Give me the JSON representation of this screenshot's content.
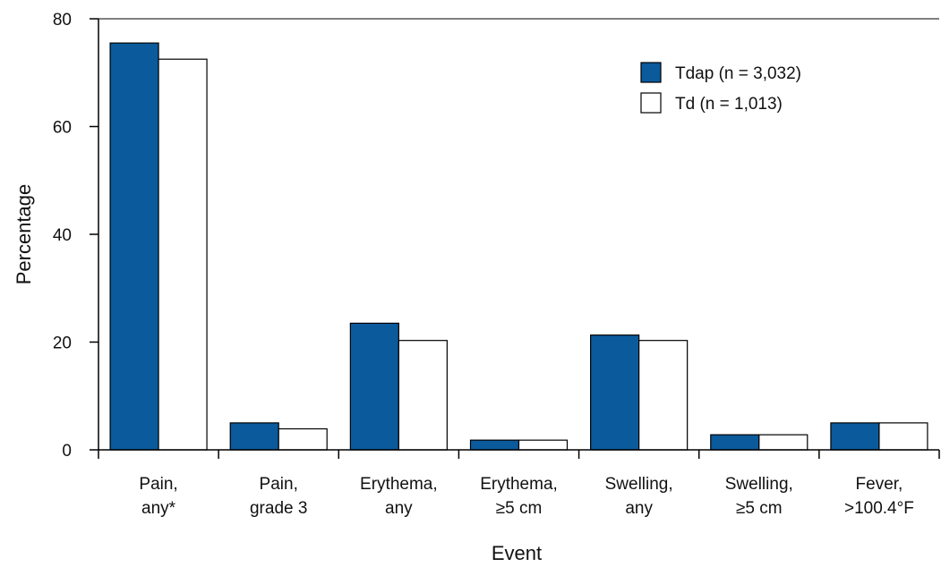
{
  "chart_data": {
    "type": "bar",
    "title": "",
    "xlabel": "Event",
    "ylabel": "Percentage",
    "ylim": [
      0,
      80
    ],
    "yticks": [
      0,
      20,
      40,
      60,
      80
    ],
    "grid": false,
    "legend_position": "top-right",
    "categories": [
      [
        "Pain,",
        "any*"
      ],
      [
        "Pain,",
        "grade 3"
      ],
      [
        "Erythema,",
        "any"
      ],
      [
        "Erythema,",
        "≥5 cm"
      ],
      [
        "Swelling,",
        "any"
      ],
      [
        "Swelling,",
        "≥5 cm"
      ],
      [
        "Fever,",
        ">100.4°F"
      ]
    ],
    "series": [
      {
        "name": "Tdap (n = 3,032)",
        "color": "#0a5a9c",
        "values": [
          75.5,
          5,
          23.5,
          1.8,
          21.3,
          2.8,
          5
        ]
      },
      {
        "name": "Td (n = 1,013)",
        "color": "#ffffff",
        "values": [
          72.5,
          3.9,
          20.3,
          1.8,
          20.3,
          2.8,
          5
        ]
      }
    ]
  }
}
